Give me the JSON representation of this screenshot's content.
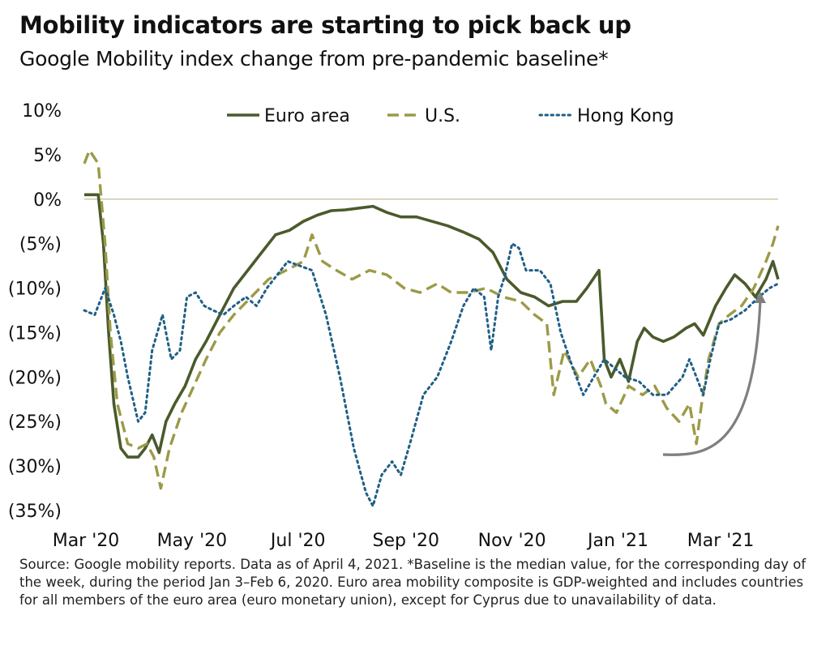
{
  "title": "Mobility indicators are starting to pick back up",
  "subtitle": "Google Mobility index change from pre-pandemic baseline*",
  "footnote": "Source: Google mobility reports. Data as of April 4, 2021. *Baseline is the median value, for the corresponding day of the week, during the period Jan 3–Feb 6, 2020. Euro area mobility composite is GDP-weighted and includes countries for all members of the euro area (euro monetary union), except for Cyprus due to unavailability of data.",
  "chart_data": {
    "type": "line",
    "title": "Mobility indicators are starting to pick back up",
    "subtitle": "Google Mobility index change from pre-pandemic baseline*",
    "x_tick_labels": [
      "Mar '20",
      "May '20",
      "Jul '20",
      "Sep '20",
      "Nov '20",
      "Jan '21",
      "Mar '21"
    ],
    "y_ticks": [
      10,
      5,
      0,
      -5,
      -10,
      -15,
      -20,
      -25,
      -30,
      -35
    ],
    "y_tick_labels": [
      "10%",
      "5%",
      "0%",
      "(5%)",
      "(10%)",
      "(15%)",
      "(20%)",
      "(25%)",
      "(30%)",
      "(35%)"
    ],
    "ylim": [
      -35,
      10
    ],
    "xlim": [
      "2020-03-01",
      "2021-04-04"
    ],
    "zero_line": true,
    "grid": false,
    "legend_position": "top",
    "annotation": "curved arrow pointing upward at the end of the series",
    "series": [
      {
        "name": "Euro area",
        "color": "#4a5a2c",
        "style": "solid",
        "points": [
          [
            "2020-03-01",
            0.5
          ],
          [
            "2020-03-05",
            0.5
          ],
          [
            "2020-03-09",
            0.5
          ],
          [
            "2020-03-12",
            -5
          ],
          [
            "2020-03-15",
            -15
          ],
          [
            "2020-03-18",
            -23
          ],
          [
            "2020-03-22",
            -28
          ],
          [
            "2020-03-26",
            -29
          ],
          [
            "2020-04-01",
            -29
          ],
          [
            "2020-04-05",
            -28
          ],
          [
            "2020-04-09",
            -26.5
          ],
          [
            "2020-04-13",
            -28.5
          ],
          [
            "2020-04-17",
            -25
          ],
          [
            "2020-04-22",
            -23
          ],
          [
            "2020-04-28",
            -21
          ],
          [
            "2020-05-04",
            -18
          ],
          [
            "2020-05-10",
            -16
          ],
          [
            "2020-05-18",
            -13
          ],
          [
            "2020-05-26",
            -10
          ],
          [
            "2020-06-03",
            -8
          ],
          [
            "2020-06-11",
            -6
          ],
          [
            "2020-06-19",
            -4
          ],
          [
            "2020-06-27",
            -3.5
          ],
          [
            "2020-07-05",
            -2.5
          ],
          [
            "2020-07-13",
            -1.8
          ],
          [
            "2020-07-21",
            -1.3
          ],
          [
            "2020-07-29",
            -1.2
          ],
          [
            "2020-08-06",
            -1.0
          ],
          [
            "2020-08-14",
            -0.8
          ],
          [
            "2020-08-22",
            -1.5
          ],
          [
            "2020-08-30",
            -2
          ],
          [
            "2020-09-08",
            -2
          ],
          [
            "2020-09-17",
            -2.5
          ],
          [
            "2020-09-26",
            -3
          ],
          [
            "2020-10-05",
            -3.7
          ],
          [
            "2020-10-14",
            -4.5
          ],
          [
            "2020-10-22",
            -6
          ],
          [
            "2020-10-30",
            -9
          ],
          [
            "2020-11-07",
            -10.5
          ],
          [
            "2020-11-15",
            -11
          ],
          [
            "2020-11-23",
            -12
          ],
          [
            "2020-12-01",
            -11.5
          ],
          [
            "2020-12-09",
            -11.5
          ],
          [
            "2020-12-15",
            -10
          ],
          [
            "2020-12-22",
            -8
          ],
          [
            "2020-12-25",
            -18
          ],
          [
            "2020-12-29",
            -20
          ],
          [
            "2021-01-03",
            -18
          ],
          [
            "2021-01-08",
            -20.5
          ],
          [
            "2021-01-13",
            -16
          ],
          [
            "2021-01-17",
            -14.5
          ],
          [
            "2021-01-22",
            -15.5
          ],
          [
            "2021-01-28",
            -16
          ],
          [
            "2021-02-03",
            -15.5
          ],
          [
            "2021-02-10",
            -14.5
          ],
          [
            "2021-02-15",
            -14
          ],
          [
            "2021-02-20",
            -15.3
          ],
          [
            "2021-02-27",
            -12
          ],
          [
            "2021-03-05",
            -10
          ],
          [
            "2021-03-10",
            -8.5
          ],
          [
            "2021-03-16",
            -9.5
          ],
          [
            "2021-03-22",
            -11
          ],
          [
            "2021-03-28",
            -9
          ],
          [
            "2021-04-01",
            -7
          ],
          [
            "2021-04-04",
            -9
          ]
        ]
      },
      {
        "name": "U.S.",
        "color": "#9c9a47",
        "style": "dashed",
        "points": [
          [
            "2020-03-01",
            4
          ],
          [
            "2020-03-04",
            5.5
          ],
          [
            "2020-03-09",
            4
          ],
          [
            "2020-03-13",
            -5
          ],
          [
            "2020-03-16",
            -15
          ],
          [
            "2020-03-20",
            -23
          ],
          [
            "2020-03-26",
            -27.5
          ],
          [
            "2020-04-01",
            -28
          ],
          [
            "2020-04-06",
            -27.5
          ],
          [
            "2020-04-10",
            -29
          ],
          [
            "2020-04-14",
            -32.5
          ],
          [
            "2020-04-19",
            -28
          ],
          [
            "2020-04-26",
            -24
          ],
          [
            "2020-05-03",
            -21
          ],
          [
            "2020-05-10",
            -18
          ],
          [
            "2020-05-18",
            -15
          ],
          [
            "2020-05-26",
            -13
          ],
          [
            "2020-06-05",
            -11
          ],
          [
            "2020-06-15",
            -9
          ],
          [
            "2020-06-25",
            -8
          ],
          [
            "2020-07-05",
            -7
          ],
          [
            "2020-07-10",
            -4
          ],
          [
            "2020-07-16",
            -7
          ],
          [
            "2020-07-24",
            -8
          ],
          [
            "2020-08-02",
            -9
          ],
          [
            "2020-08-12",
            -8
          ],
          [
            "2020-08-22",
            -8.5
          ],
          [
            "2020-09-01",
            -10
          ],
          [
            "2020-09-10",
            -10.5
          ],
          [
            "2020-09-20",
            -9.5
          ],
          [
            "2020-09-28",
            -10.5
          ],
          [
            "2020-10-08",
            -10.5
          ],
          [
            "2020-10-18",
            -10
          ],
          [
            "2020-10-28",
            -11
          ],
          [
            "2020-11-07",
            -11.5
          ],
          [
            "2020-11-15",
            -13
          ],
          [
            "2020-11-22",
            -14
          ],
          [
            "2020-11-26",
            -22
          ],
          [
            "2020-12-02",
            -17
          ],
          [
            "2020-12-10",
            -20
          ],
          [
            "2020-12-17",
            -18
          ],
          [
            "2020-12-23",
            -21
          ],
          [
            "2020-12-26",
            -23
          ],
          [
            "2021-01-01",
            -24
          ],
          [
            "2021-01-08",
            -21
          ],
          [
            "2021-01-16",
            -22
          ],
          [
            "2021-01-23",
            -21
          ],
          [
            "2021-01-30",
            -23.5
          ],
          [
            "2021-02-06",
            -25
          ],
          [
            "2021-02-12",
            -23
          ],
          [
            "2021-02-16",
            -27.5
          ],
          [
            "2021-02-19",
            -23
          ],
          [
            "2021-02-23",
            -18
          ],
          [
            "2021-03-01",
            -14
          ],
          [
            "2021-03-07",
            -13
          ],
          [
            "2021-03-14",
            -12
          ],
          [
            "2021-03-21",
            -10
          ],
          [
            "2021-03-28",
            -7
          ],
          [
            "2021-04-01",
            -5
          ],
          [
            "2021-04-04",
            -3
          ]
        ]
      },
      {
        "name": "Hong Kong",
        "color": "#1f5f86",
        "style": "dotted",
        "points": [
          [
            "2020-03-01",
            -12.5
          ],
          [
            "2020-03-07",
            -13
          ],
          [
            "2020-03-13",
            -10
          ],
          [
            "2020-03-18",
            -13
          ],
          [
            "2020-03-22",
            -16
          ],
          [
            "2020-03-26",
            -20
          ],
          [
            "2020-04-01",
            -25
          ],
          [
            "2020-04-05",
            -24
          ],
          [
            "2020-04-09",
            -17
          ],
          [
            "2020-04-15",
            -13
          ],
          [
            "2020-04-20",
            -18
          ],
          [
            "2020-04-25",
            -17
          ],
          [
            "2020-04-29",
            -11
          ],
          [
            "2020-05-04",
            -10.5
          ],
          [
            "2020-05-09",
            -12
          ],
          [
            "2020-05-14",
            -12.5
          ],
          [
            "2020-05-20",
            -13
          ],
          [
            "2020-05-26",
            -12
          ],
          [
            "2020-06-02",
            -11
          ],
          [
            "2020-06-08",
            -12
          ],
          [
            "2020-06-14",
            -10
          ],
          [
            "2020-06-20",
            -8.5
          ],
          [
            "2020-06-26",
            -7
          ],
          [
            "2020-07-03",
            -7.5
          ],
          [
            "2020-07-10",
            -8
          ],
          [
            "2020-07-18",
            -13
          ],
          [
            "2020-07-26",
            -20
          ],
          [
            "2020-08-03",
            -28
          ],
          [
            "2020-08-10",
            -33
          ],
          [
            "2020-08-14",
            -34.5
          ],
          [
            "2020-08-19",
            -31
          ],
          [
            "2020-08-25",
            -29.5
          ],
          [
            "2020-08-30",
            -31
          ],
          [
            "2020-09-05",
            -27
          ],
          [
            "2020-09-12",
            -22
          ],
          [
            "2020-09-20",
            -20
          ],
          [
            "2020-09-28",
            -16
          ],
          [
            "2020-10-05",
            -12
          ],
          [
            "2020-10-11",
            -10
          ],
          [
            "2020-10-17",
            -11
          ],
          [
            "2020-10-21",
            -17
          ],
          [
            "2020-10-25",
            -11
          ],
          [
            "2020-10-29",
            -8.5
          ],
          [
            "2020-11-02",
            -5
          ],
          [
            "2020-11-06",
            -5.5
          ],
          [
            "2020-11-10",
            -8
          ],
          [
            "2020-11-18",
            -8
          ],
          [
            "2020-11-24",
            -9.5
          ],
          [
            "2020-11-30",
            -15
          ],
          [
            "2020-12-07",
            -19
          ],
          [
            "2020-12-13",
            -22
          ],
          [
            "2020-12-19",
            -20
          ],
          [
            "2020-12-25",
            -18
          ],
          [
            "2020-12-31",
            -19
          ],
          [
            "2021-01-06",
            -20
          ],
          [
            "2021-01-14",
            -20.5
          ],
          [
            "2021-01-22",
            -22
          ],
          [
            "2021-01-30",
            -22
          ],
          [
            "2021-02-08",
            -20
          ],
          [
            "2021-02-12",
            -18
          ],
          [
            "2021-02-16",
            -20
          ],
          [
            "2021-02-20",
            -22
          ],
          [
            "2021-02-24",
            -18
          ],
          [
            "2021-03-01",
            -14
          ],
          [
            "2021-03-08",
            -13.5
          ],
          [
            "2021-03-16",
            -12.5
          ],
          [
            "2021-03-24",
            -11
          ],
          [
            "2021-03-30",
            -10
          ],
          [
            "2021-04-04",
            -9.5
          ]
        ]
      }
    ]
  }
}
